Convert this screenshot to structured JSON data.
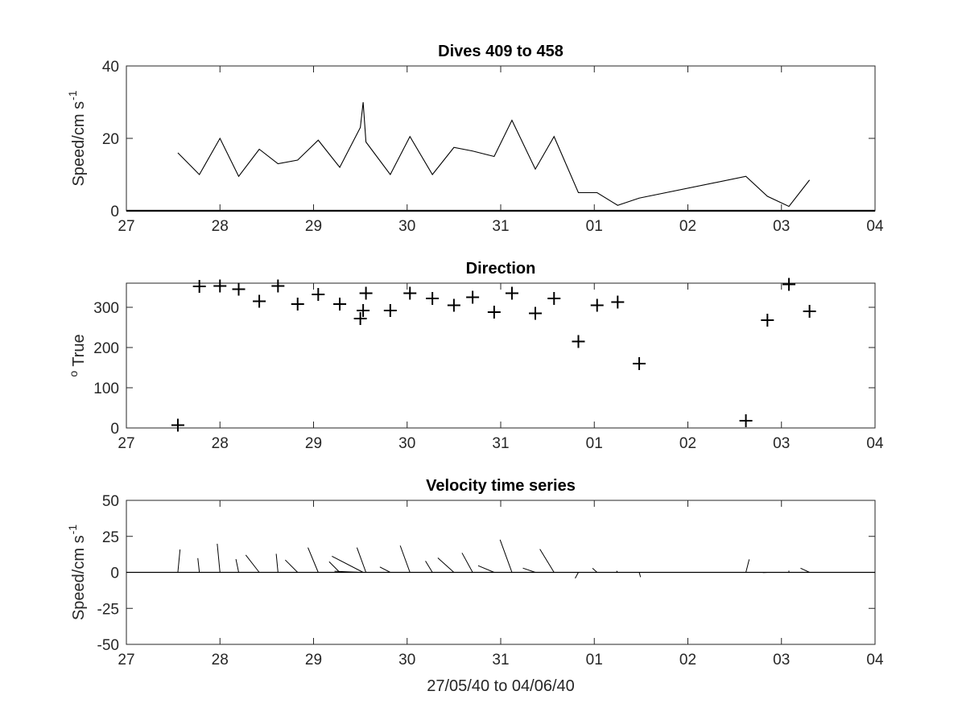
{
  "chart_data": [
    {
      "type": "line",
      "title": "Dives 409 to 458",
      "ylabel": "Speed/cm s",
      "ylabel_superscript": "-1",
      "xlabel": "",
      "xlim": [
        0,
        8
      ],
      "ylim": [
        0,
        40
      ],
      "xticks": [
        "27",
        "28",
        "29",
        "30",
        "31",
        "01",
        "02",
        "03",
        "04"
      ],
      "yticks": [
        "0",
        "20",
        "40"
      ],
      "grid": false,
      "x": [
        0.55,
        0.78,
        1.0,
        1.2,
        1.42,
        1.62,
        1.83,
        2.05,
        2.28,
        2.5,
        2.53,
        2.56,
        2.82,
        3.03,
        3.27,
        3.5,
        3.7,
        3.93,
        4.12,
        4.37,
        4.57,
        4.83,
        5.03,
        5.25,
        5.48,
        6.62,
        6.85,
        7.08,
        7.3
      ],
      "y": [
        16,
        10,
        20,
        9.5,
        17,
        13,
        14,
        19.5,
        12,
        23,
        30,
        19,
        10,
        20.5,
        10,
        17.5,
        16.5,
        15,
        25,
        11.5,
        20.5,
        5,
        5,
        1.5,
        3.5,
        9.5,
        4,
        1.2,
        8.5
      ]
    },
    {
      "type": "scatter",
      "title": "Direction",
      "ylabel": "True",
      "ylabel_prefix": "o",
      "xlabel": "",
      "xlim": [
        0,
        8
      ],
      "ylim": [
        0,
        360
      ],
      "xticks": [
        "27",
        "28",
        "29",
        "30",
        "31",
        "01",
        "02",
        "03",
        "04"
      ],
      "yticks": [
        "0",
        "100",
        "200",
        "300"
      ],
      "grid": false,
      "marker": "+",
      "x": [
        0.55,
        0.78,
        1.0,
        1.2,
        1.42,
        1.62,
        1.83,
        2.05,
        2.28,
        2.5,
        2.53,
        2.56,
        2.82,
        3.03,
        3.27,
        3.5,
        3.7,
        3.93,
        4.12,
        4.37,
        4.57,
        4.83,
        5.03,
        5.25,
        5.48,
        6.62,
        6.85,
        7.08,
        7.3
      ],
      "y": [
        7,
        352,
        353,
        345,
        315,
        353,
        308,
        332,
        308,
        272,
        292,
        335,
        292,
        335,
        322,
        305,
        325,
        288,
        335,
        285,
        322,
        215,
        305,
        313,
        160,
        18,
        268,
        357,
        290
      ]
    },
    {
      "type": "quiver",
      "title": "Velocity time series",
      "ylabel": "Speed/cm s",
      "ylabel_superscript": "-1",
      "xlabel": "27/05/40 to 04/06/40",
      "xlim": [
        0,
        8
      ],
      "ylim": [
        -50,
        50
      ],
      "xticks": [
        "27",
        "28",
        "29",
        "30",
        "31",
        "01",
        "02",
        "03",
        "04"
      ],
      "yticks": [
        "50",
        "25",
        "0",
        "-25",
        "-50"
      ],
      "grid": false,
      "baseline": 0,
      "x": [
        0.55,
        0.78,
        1.0,
        1.2,
        1.42,
        1.62,
        1.83,
        2.05,
        2.28,
        2.5,
        2.53,
        2.56,
        2.82,
        3.03,
        3.27,
        3.5,
        3.7,
        3.93,
        4.12,
        4.37,
        4.57,
        4.83,
        5.03,
        5.25,
        5.48,
        6.62,
        6.85,
        7.08,
        7.3
      ],
      "speed": [
        16,
        10,
        20,
        9.5,
        17,
        13,
        14,
        19.5,
        12,
        23,
        30,
        19,
        10,
        20.5,
        10,
        17.5,
        16.5,
        15,
        25,
        11.5,
        20.5,
        5,
        5,
        1.5,
        3.5,
        9.5,
        4,
        1.2,
        8.5
      ],
      "direction_deg_true": [
        7,
        352,
        353,
        345,
        315,
        353,
        308,
        332,
        308,
        272,
        292,
        335,
        292,
        335,
        322,
        305,
        325,
        288,
        335,
        285,
        322,
        215,
        305,
        313,
        160,
        18,
        268,
        357,
        290
      ]
    }
  ]
}
